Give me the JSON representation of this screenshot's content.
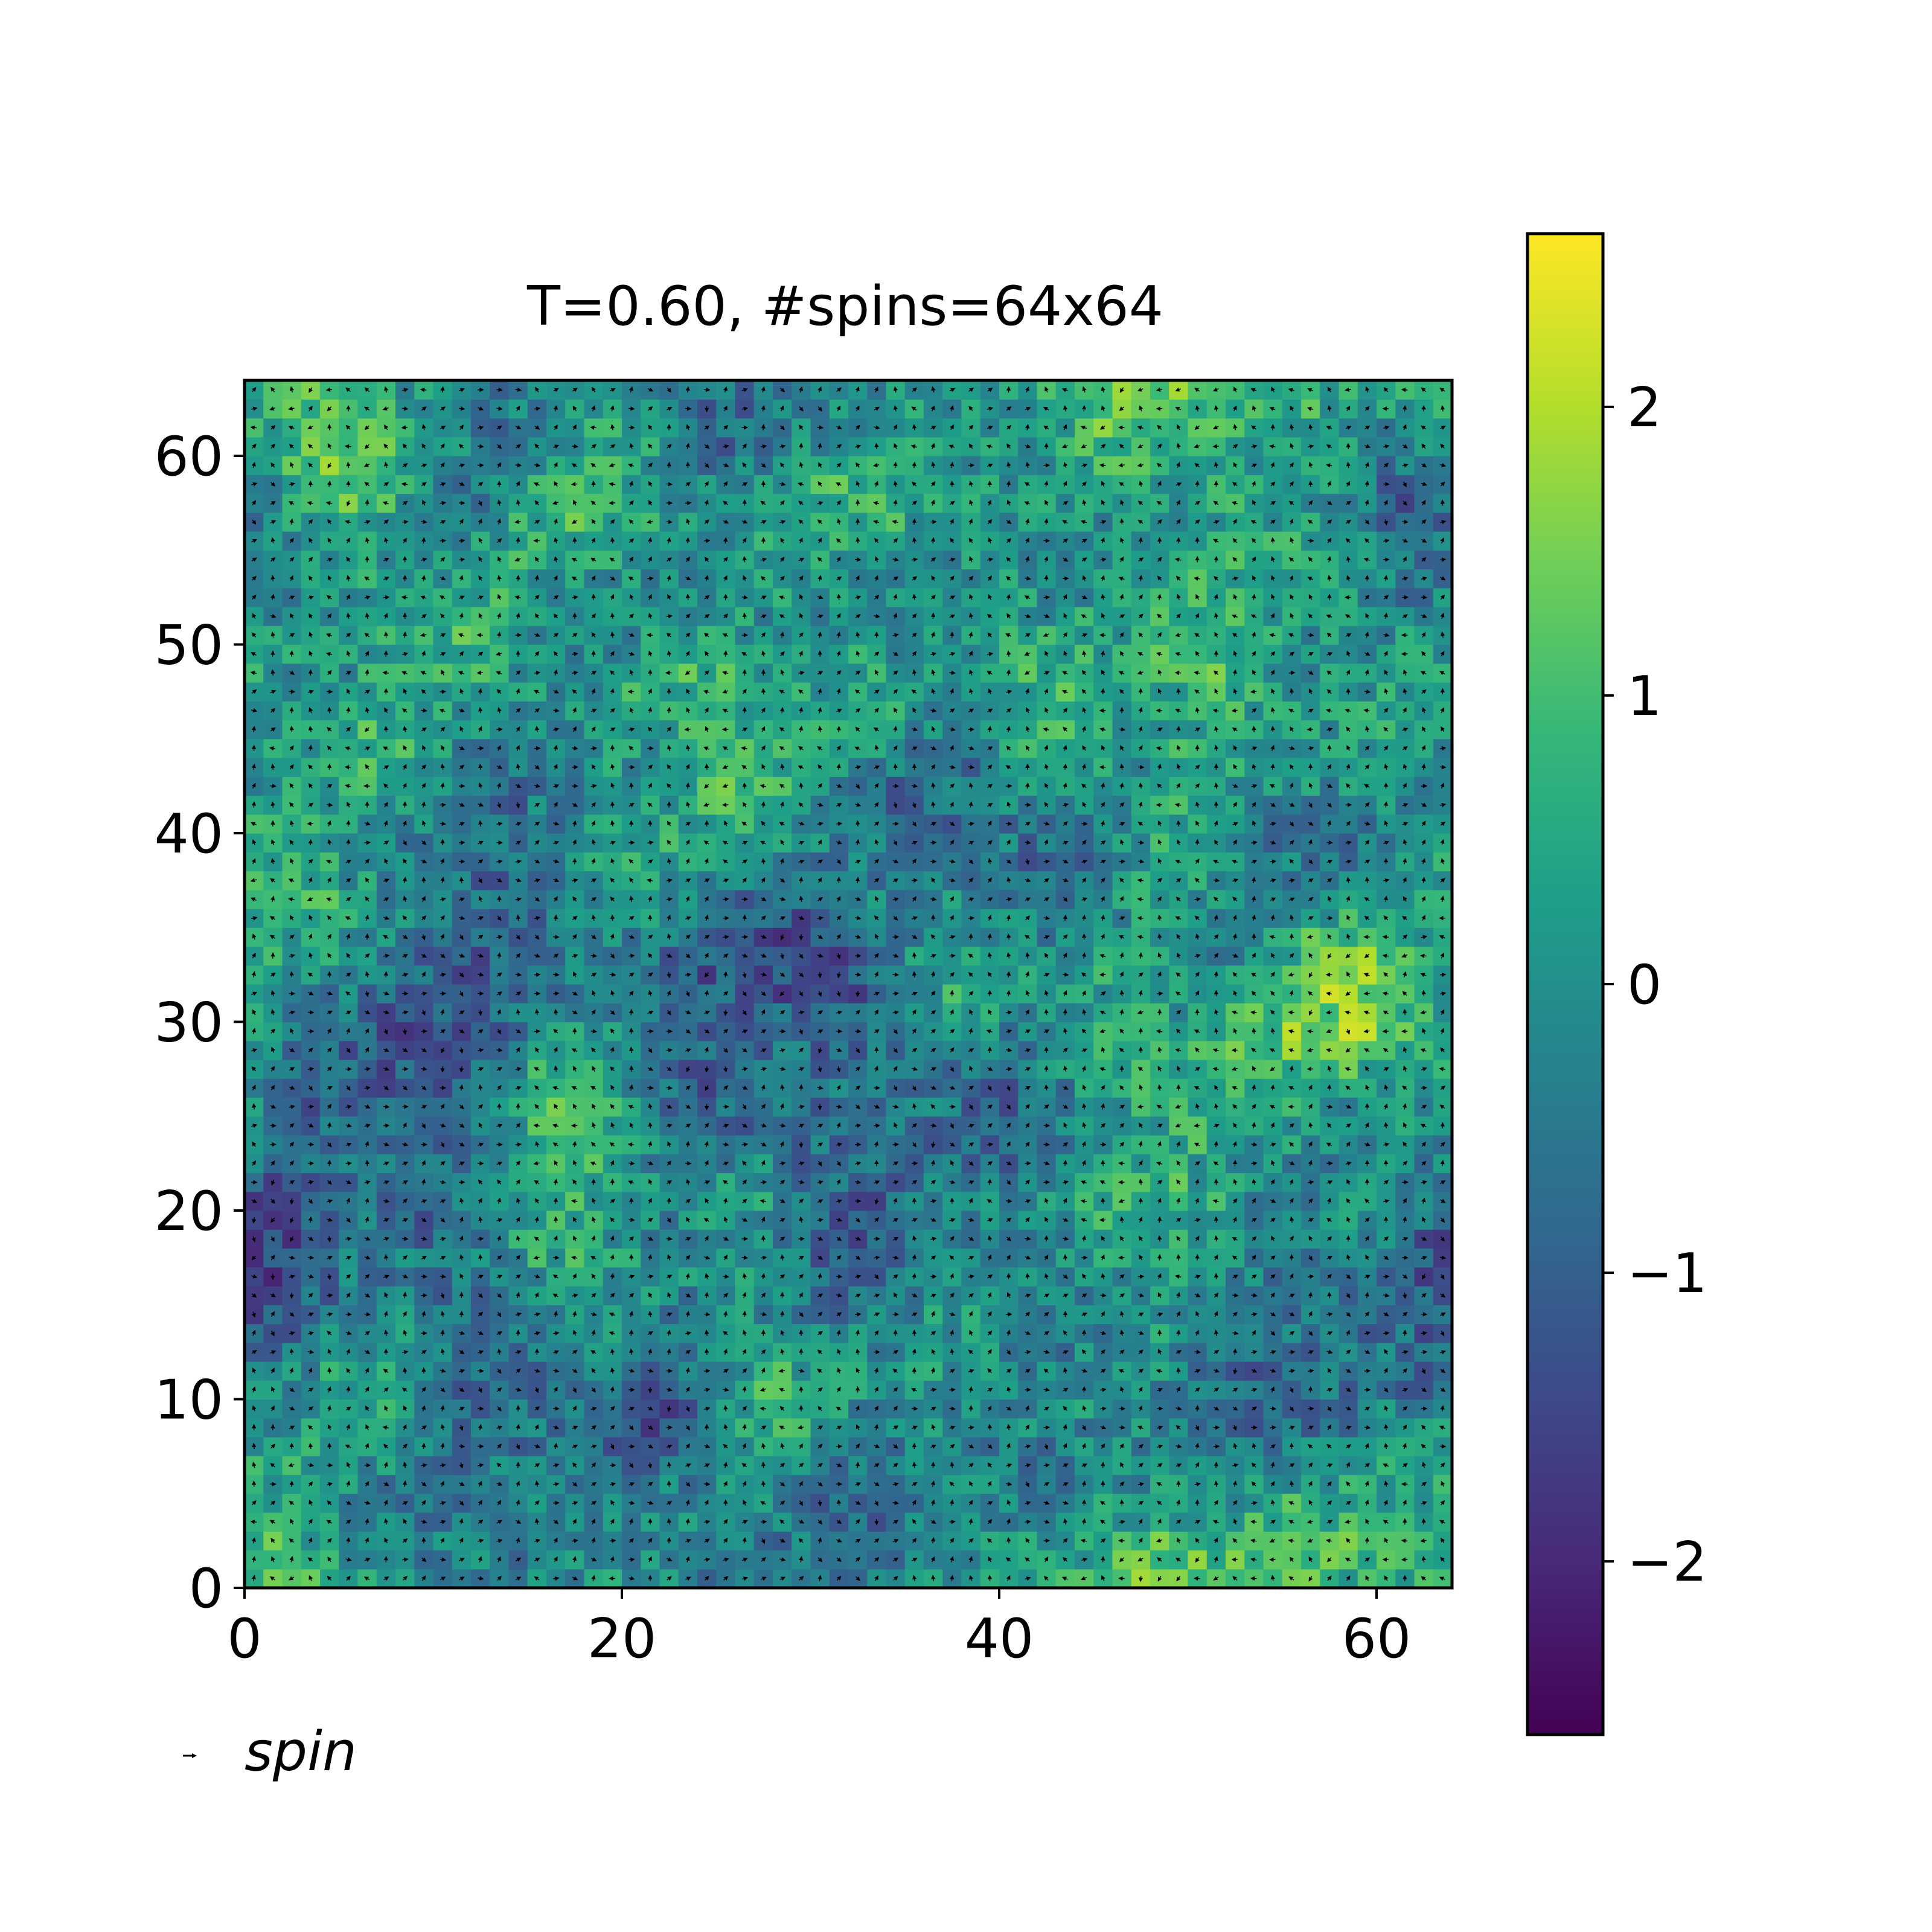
{
  "chart_data": {
    "type": "heatmap",
    "title": "T=0.60, #spins=64x64",
    "xlabel": "",
    "ylabel": "",
    "xlim": [
      0,
      64
    ],
    "ylim": [
      0,
      64
    ],
    "x_ticks": [
      "0",
      "20",
      "40",
      "60"
    ],
    "y_ticks": [
      "0",
      "10",
      "20",
      "30",
      "40",
      "50",
      "60"
    ],
    "colorbar": {
      "range": [
        -2.6,
        2.6
      ],
      "ticks": [
        "−2",
        "−1",
        "0",
        "1",
        "2"
      ],
      "colormap": "viridis"
    },
    "grid": false,
    "legend": {
      "position": "bottom-left",
      "entries": [
        "spin"
      ]
    },
    "quiver": "one arrow per lattice site (64x64), unit spin direction",
    "field_description": "random 64x64 field with smooth domains; values roughly in [-2.6, 2.6]",
    "seed": 7
  },
  "colors": {
    "viridis": [
      "#440154",
      "#482878",
      "#3e4989",
      "#31688e",
      "#26828e",
      "#1f9e89",
      "#35b779",
      "#6ece58",
      "#b5de2b",
      "#fde725"
    ],
    "arrow": "#000000",
    "axes": "#000000"
  }
}
